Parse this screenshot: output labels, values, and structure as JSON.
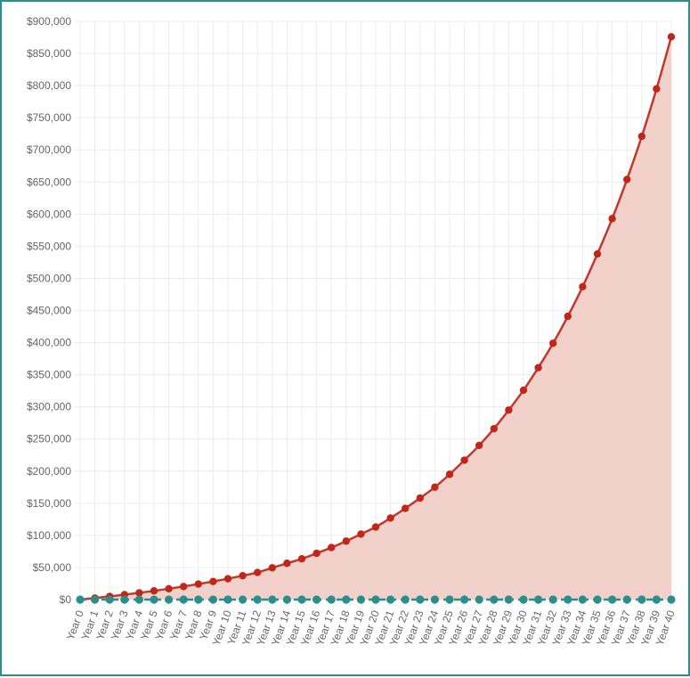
{
  "colors": {
    "border": "#2a8f8a",
    "grid": "#ececec",
    "axis_text": "#666666",
    "series_main_line": "#c0392b",
    "series_main_fill": "#f2d1cb",
    "series_main_point": "#c0271a",
    "series_base": "#2a8f8a"
  },
  "chart_data": {
    "type": "area",
    "title": "",
    "xlabel": "",
    "ylabel": "",
    "ylim": [
      0,
      900000
    ],
    "grid": true,
    "legend": "none",
    "y_ticks": [
      "$0",
      "$50,000",
      "$100,000",
      "$150,000",
      "$200,000",
      "$250,000",
      "$300,000",
      "$350,000",
      "$400,000",
      "$450,000",
      "$500,000",
      "$550,000",
      "$600,000",
      "$650,000",
      "$700,000",
      "$750,000",
      "$800,000",
      "$850,000",
      "$900,000"
    ],
    "categories": [
      "Year 0",
      "Year 1",
      "Year 2",
      "Year 3",
      "Year 4",
      "Year 5",
      "Year 6",
      "Year 7",
      "Year 8",
      "Year 9",
      "Year 10",
      "Year 11",
      "Year 12",
      "Year 13",
      "Year 14",
      "Year 15",
      "Year 16",
      "Year 17",
      "Year 18",
      "Year 19",
      "Year 20",
      "Year 21",
      "Year 22",
      "Year 23",
      "Year 24",
      "Year 25",
      "Year 26",
      "Year 27",
      "Year 28",
      "Year 29",
      "Year 30",
      "Year 31",
      "Year 32",
      "Year 33",
      "Year 34",
      "Year 35",
      "Year 36",
      "Year 37",
      "Year 38",
      "Year 39",
      "Year 40"
    ],
    "series": [
      {
        "values": [
          0,
          2400,
          5000,
          7700,
          10500,
          13600,
          16900,
          20400,
          24200,
          28200,
          32500,
          37200,
          42200,
          49500,
          56500,
          63500,
          72000,
          81000,
          91000,
          102000,
          113000,
          127000,
          142000,
          158000,
          175000,
          195000,
          217000,
          240000,
          266000,
          295000,
          326000,
          361000,
          399000,
          441000,
          487000,
          538000,
          593000,
          654000,
          721000,
          795000,
          876000
        ]
      },
      {
        "values": [
          0,
          0,
          0,
          0,
          0,
          0,
          0,
          0,
          0,
          0,
          0,
          0,
          0,
          0,
          0,
          0,
          0,
          0,
          0,
          0,
          0,
          0,
          0,
          0,
          0,
          0,
          0,
          0,
          0,
          0,
          0,
          0,
          0,
          0,
          0,
          0,
          0,
          0,
          0,
          0,
          0
        ]
      }
    ]
  }
}
